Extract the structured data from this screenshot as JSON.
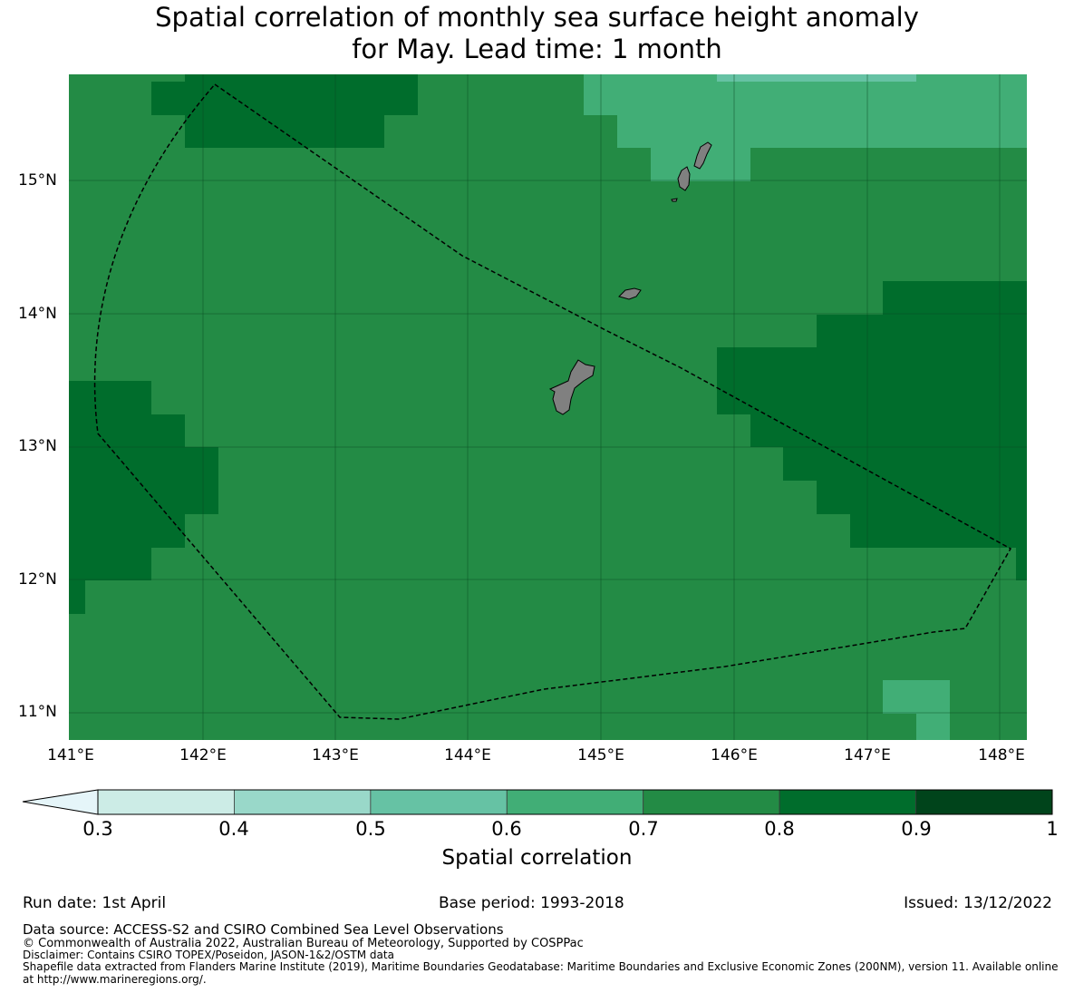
{
  "title": {
    "line1": "Spatial correlation of monthly sea surface height anomaly",
    "line2": "for May. Lead time: 1 month"
  },
  "map": {
    "lat_labels": [
      "15°N",
      "14°N",
      "13°N",
      "12°N",
      "11°N"
    ],
    "lon_labels": [
      "141°E",
      "142°E",
      "143°E",
      "144°E",
      "145°E",
      "146°E",
      "147°E",
      "148°E"
    ],
    "lon_range": [
      140.95,
      148.15
    ],
    "lat_range": [
      10.8,
      15.8
    ],
    "colors": {
      "0.7": "#228b45",
      "0.8": "#006a2d",
      "0.6": "#41ab6f",
      "0.5": "#62c0a0",
      "land": "#808080"
    }
  },
  "colorbar": {
    "label": "Spatial correlation",
    "ticks": [
      "0.3",
      "0.4",
      "0.5",
      "0.6",
      "0.7",
      "0.8",
      "0.9",
      "1"
    ],
    "colors": [
      "#e5f5f9",
      "#ccece6",
      "#99d8c9",
      "#66c2a4",
      "#41ae76",
      "#238b45",
      "#006d2c",
      "#00441b"
    ]
  },
  "footer": {
    "run_date": "Run date: 1st April",
    "base_period": "Base period: 1993-2018",
    "issued": "Issued: 13/12/2022",
    "data_source": "Data source: ACCESS-S2 and CSIRO Combined Sea Level Observations",
    "copyright": "© Commonwealth of Australia 2022, Australian Bureau of Meteorology, Supported by COSPPac",
    "disclaimer": "Disclaimer: Contains CSIRO TOPEX/Poseidon, JASON-1&2/OSTM data",
    "shapefile_line1": "Shapefile data extracted from Flanders Marine Institute (2019), Maritime Boundaries Geodatabase: Maritime Boundaries and Exclusive Economic Zones (200NM), version 11. Available online",
    "shapefile_line2": "at http://www.marineregions.org/."
  }
}
